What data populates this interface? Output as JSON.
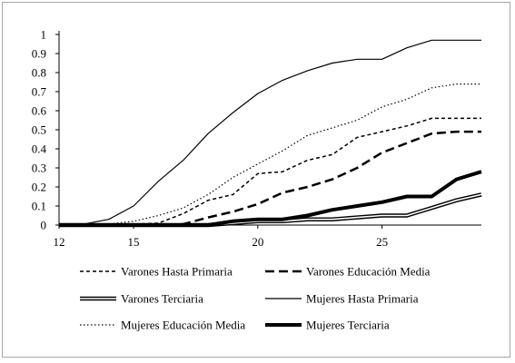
{
  "chart_data": {
    "type": "line",
    "title": "",
    "xlabel": "",
    "ylabel": "",
    "xlim": [
      12,
      29
    ],
    "ylim": [
      0,
      1
    ],
    "x_ticks": [
      12,
      15,
      20,
      25
    ],
    "y_ticks": [
      0,
      0.1,
      0.2,
      0.3,
      0.4,
      0.5,
      0.6,
      0.7,
      0.8,
      0.9,
      1
    ],
    "y_tick_labels": [
      "0",
      "0.1",
      "0.2",
      "0.3",
      "0.4",
      "0.5",
      "0.6",
      "0.7",
      "0.8",
      "0.9",
      "1"
    ],
    "grid": false,
    "legend_position": "bottom",
    "x": [
      12,
      13,
      14,
      15,
      16,
      17,
      18,
      19,
      20,
      21,
      22,
      23,
      24,
      25,
      26,
      27,
      28,
      29
    ],
    "series": [
      {
        "name": "Varones Hasta Primaria",
        "style": "short-dash",
        "values": [
          0,
          0,
          0,
          0.005,
          0.01,
          0.06,
          0.13,
          0.16,
          0.27,
          0.28,
          0.34,
          0.37,
          0.46,
          0.49,
          0.52,
          0.56,
          0.56,
          0.56
        ]
      },
      {
        "name": "Varones Educación Media",
        "style": "long-dash",
        "values": [
          0,
          0,
          0,
          0,
          0,
          0.005,
          0.04,
          0.07,
          0.11,
          0.17,
          0.2,
          0.24,
          0.3,
          0.38,
          0.43,
          0.48,
          0.49,
          0.49
        ]
      },
      {
        "name": "Varones Terciaria",
        "style": "double",
        "values": [
          0,
          0,
          0,
          0,
          0,
          0,
          0,
          0.01,
          0.02,
          0.02,
          0.03,
          0.03,
          0.04,
          0.05,
          0.05,
          0.09,
          0.13,
          0.16
        ]
      },
      {
        "name": "Mujeres Hasta Primaria",
        "style": "thin-solid",
        "values": [
          0,
          0.005,
          0.03,
          0.1,
          0.23,
          0.34,
          0.48,
          0.59,
          0.69,
          0.76,
          0.81,
          0.85,
          0.87,
          0.87,
          0.93,
          0.97,
          0.97,
          0.97
        ]
      },
      {
        "name": "Mujeres Educación Media",
        "style": "dotted",
        "values": [
          0,
          0,
          0.005,
          0.02,
          0.05,
          0.09,
          0.16,
          0.25,
          0.32,
          0.39,
          0.47,
          0.51,
          0.55,
          0.62,
          0.66,
          0.72,
          0.74,
          0.74
        ]
      },
      {
        "name": "Mujeres Terciaria",
        "style": "thick-solid",
        "values": [
          0,
          0,
          0,
          0,
          0,
          0,
          0,
          0.02,
          0.03,
          0.03,
          0.05,
          0.08,
          0.1,
          0.12,
          0.15,
          0.15,
          0.24,
          0.28
        ]
      }
    ]
  }
}
